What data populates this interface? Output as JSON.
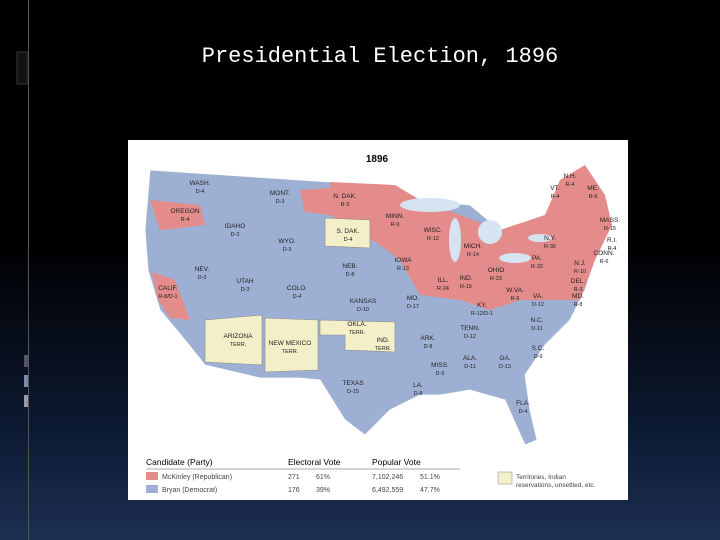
{
  "header": {
    "title": "Presidential Election, 1896"
  },
  "map": {
    "title": "1896",
    "states": [
      [
        "WASH.",
        "D-4"
      ],
      [
        "OREGON",
        "R-4"
      ],
      [
        "IDAHO",
        "D-3"
      ],
      [
        "MONT.",
        "D-3"
      ],
      [
        "WYO.",
        "D-3"
      ],
      [
        "N. DAK.",
        "R-3"
      ],
      [
        "S. DAK.",
        "D-4"
      ],
      [
        "MINN.",
        "R-9"
      ],
      [
        "NEB.",
        "D-8"
      ],
      [
        "IOWA",
        "R-13"
      ],
      [
        "WISC.",
        "R-12"
      ],
      [
        "MICH.",
        "R-14"
      ],
      [
        "ILL.",
        "R-24"
      ],
      [
        "IND.",
        "R-15"
      ],
      [
        "OHIO",
        "R-23"
      ],
      [
        "N.Y.",
        "R-36"
      ],
      [
        "PA.",
        "R-32"
      ],
      [
        "VT.",
        "R-4"
      ],
      [
        "N.H.",
        "R-4"
      ],
      [
        "ME.",
        "R-6"
      ],
      [
        "MASS.",
        "R-15"
      ],
      [
        "R.I.",
        "R-4"
      ],
      [
        "CONN.",
        "R-6"
      ],
      [
        "N.J.",
        "R-10"
      ],
      [
        "DEL.",
        "R-3"
      ],
      [
        "MD.",
        "R-8"
      ],
      [
        "W.VA.",
        "R-6"
      ],
      [
        "VA.",
        "D-12"
      ],
      [
        "KY.",
        "R-12/D-1"
      ],
      [
        "N.C.",
        "D-11"
      ],
      [
        "TENN.",
        "D-12"
      ],
      [
        "S.C.",
        "D-9"
      ],
      [
        "GA.",
        "D-13"
      ],
      [
        "ALA.",
        "D-11"
      ],
      [
        "MISS.",
        "D-9"
      ],
      [
        "LA.",
        "D-8"
      ],
      [
        "ARK.",
        "D-8"
      ],
      [
        "MO.",
        "D-17"
      ],
      [
        "KANSAS",
        "D-10"
      ],
      [
        "OKLA.",
        "TERR."
      ],
      [
        "IND.",
        "TERR."
      ],
      [
        "TEXAS",
        "D-15"
      ],
      [
        "COLO.",
        "D-4"
      ],
      [
        "UTAH",
        "D-3"
      ],
      [
        "NEV.",
        "D-3"
      ],
      [
        "CALIF.",
        "R-8/D-1"
      ],
      [
        "ARIZONA",
        "TERR."
      ],
      [
        "NEW MEXICO",
        "TERR."
      ],
      [
        "FLA.",
        "D-4"
      ]
    ],
    "legend": {
      "headers": [
        "Candidate (Party)",
        "Electoral Vote",
        "Popular Vote"
      ],
      "rows": [
        [
          "McKinley (Republican)",
          "271",
          "61%",
          "7,102,246",
          "51.1%"
        ],
        [
          "Bryan (Democrat)",
          "176",
          "39%",
          "6,492,559",
          "47.7%"
        ]
      ],
      "territories": [
        "Territories, Indian",
        "reservations, unsettled, etc."
      ]
    }
  }
}
